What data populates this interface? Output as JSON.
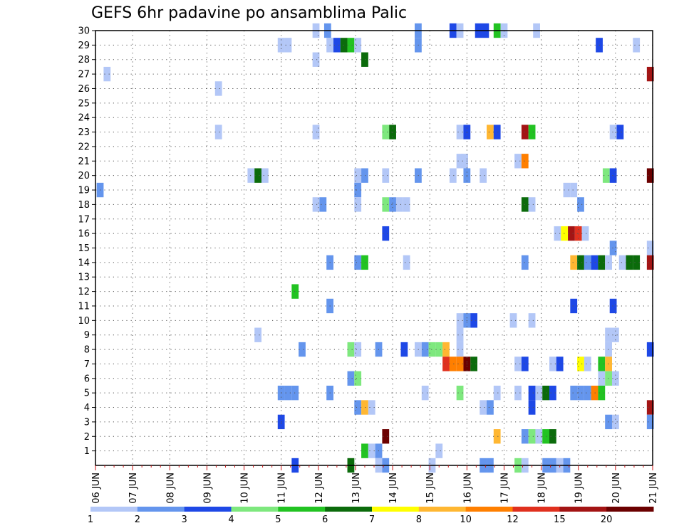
{
  "chart_data": {
    "type": "heatmap",
    "title": "GEFS 6hr padavine po ansamblima Palic",
    "xlabel": "",
    "ylabel": "",
    "x_tick_labels": [
      "06 JUN",
      "07 JUN",
      "08 JUN",
      "09 JUN",
      "10 JUN",
      "11 JUN",
      "12 JUN",
      "13 JUN",
      "14 JUN",
      "15 JUN",
      "16 JUN",
      "17 JUN",
      "18 JUN",
      "19 JUN",
      "20 JUN",
      "21 JUN"
    ],
    "y_tick_labels": [
      "1",
      "2",
      "3",
      "4",
      "5",
      "6",
      "7",
      "8",
      "9",
      "10",
      "11",
      "12",
      "13",
      "14",
      "15",
      "16",
      "17",
      "18",
      "19",
      "20",
      "21",
      "22",
      "23",
      "24",
      "25",
      "26",
      "27",
      "28",
      "29",
      "30"
    ],
    "xlim": [
      0,
      60
    ],
    "ylim": [
      0,
      30
    ],
    "x_unit_note": "x in 6-hour steps from 06 JUN 00z",
    "grid": true,
    "colorbar": {
      "placement": "bottom",
      "labels": [
        "1",
        "2",
        "3",
        "4",
        "5",
        "6",
        "7",
        "8",
        "10",
        "12",
        "15",
        "20"
      ],
      "colors": [
        "#b3c7f7",
        "#6495ed",
        "#1e48e6",
        "#7ee87e",
        "#22c322",
        "#0b6b0b",
        "#ffff00",
        "#ffb732",
        "#ff7f00",
        "#e0301e",
        "#a31414",
        "#6b0000"
      ]
    },
    "cells": [
      [
        23.75,
        30,
        1
      ],
      [
        25,
        30,
        2
      ],
      [
        34.75,
        30,
        2
      ],
      [
        38.5,
        30,
        3
      ],
      [
        39.25,
        30,
        1
      ],
      [
        41.25,
        30,
        3
      ],
      [
        42,
        30,
        3
      ],
      [
        43.25,
        30,
        5
      ],
      [
        44,
        30,
        1
      ],
      [
        47.5,
        30,
        1
      ],
      [
        20,
        29,
        1
      ],
      [
        20.75,
        29,
        1
      ],
      [
        25.25,
        29,
        1
      ],
      [
        26,
        29,
        3
      ],
      [
        26.75,
        29,
        6
      ],
      [
        27.5,
        29,
        5
      ],
      [
        28.25,
        29,
        1
      ],
      [
        34.75,
        29,
        2
      ],
      [
        54.25,
        29,
        3
      ],
      [
        58.25,
        29,
        1
      ],
      [
        23.75,
        28,
        1
      ],
      [
        29,
        28,
        6
      ],
      [
        1.25,
        27,
        1
      ],
      [
        59.75,
        27,
        11
      ],
      [
        13.25,
        26,
        1
      ],
      [
        13.25,
        23,
        1
      ],
      [
        23.75,
        23,
        1
      ],
      [
        31.25,
        23,
        4
      ],
      [
        32,
        23,
        6
      ],
      [
        39.25,
        23,
        1
      ],
      [
        40,
        23,
        3
      ],
      [
        42.5,
        23,
        8
      ],
      [
        43.25,
        23,
        3
      ],
      [
        46.25,
        23,
        11
      ],
      [
        47,
        23,
        5
      ],
      [
        55.75,
        23,
        1
      ],
      [
        56.5,
        23,
        3
      ],
      [
        39.25,
        21,
        1
      ],
      [
        39.75,
        21,
        1
      ],
      [
        45.5,
        21,
        1
      ],
      [
        46.25,
        21,
        9
      ],
      [
        16.75,
        20,
        1
      ],
      [
        17.5,
        20,
        6
      ],
      [
        18.25,
        20,
        1
      ],
      [
        28.25,
        20,
        1
      ],
      [
        29,
        20,
        2
      ],
      [
        31.25,
        20,
        1
      ],
      [
        34.75,
        20,
        2
      ],
      [
        38.5,
        20,
        1
      ],
      [
        40,
        20,
        2
      ],
      [
        41.75,
        20,
        1
      ],
      [
        55,
        20,
        4
      ],
      [
        55.75,
        20,
        3
      ],
      [
        59.75,
        20,
        12
      ],
      [
        0.5,
        19,
        2
      ],
      [
        28.25,
        19,
        2
      ],
      [
        50.75,
        19,
        1
      ],
      [
        51.5,
        19,
        1
      ],
      [
        23.75,
        18,
        1
      ],
      [
        24.5,
        18,
        2
      ],
      [
        28.25,
        18,
        1
      ],
      [
        31.25,
        18,
        4
      ],
      [
        32,
        18,
        2
      ],
      [
        32.75,
        18,
        1
      ],
      [
        33.5,
        18,
        1
      ],
      [
        46.25,
        18,
        6
      ],
      [
        47,
        18,
        1
      ],
      [
        52.25,
        18,
        2
      ],
      [
        31.25,
        16,
        3
      ],
      [
        49.75,
        16,
        1
      ],
      [
        50.5,
        16,
        7
      ],
      [
        51.25,
        16,
        11
      ],
      [
        52,
        16,
        10
      ],
      [
        52.75,
        16,
        1
      ],
      [
        55.75,
        15,
        2
      ],
      [
        59.75,
        15,
        1
      ],
      [
        25.25,
        14,
        2
      ],
      [
        28.25,
        14,
        2
      ],
      [
        29,
        14,
        5
      ],
      [
        33.5,
        14,
        1
      ],
      [
        46.25,
        14,
        2
      ],
      [
        51.5,
        14,
        8
      ],
      [
        52.25,
        14,
        6
      ],
      [
        53,
        14,
        2
      ],
      [
        53.75,
        14,
        3
      ],
      [
        54.5,
        14,
        6
      ],
      [
        55.25,
        14,
        1
      ],
      [
        56.75,
        14,
        1
      ],
      [
        57.5,
        14,
        6
      ],
      [
        58.25,
        14,
        6
      ],
      [
        59.75,
        14,
        11
      ],
      [
        21.5,
        12,
        5
      ],
      [
        51.5,
        11,
        3
      ],
      [
        55.75,
        11,
        3
      ],
      [
        25.25,
        11,
        2
      ],
      [
        39.25,
        10,
        1
      ],
      [
        40,
        10,
        2
      ],
      [
        40.75,
        10,
        3
      ],
      [
        45,
        10,
        1
      ],
      [
        47,
        10,
        1
      ],
      [
        17.5,
        9,
        1
      ],
      [
        39.25,
        9,
        1
      ],
      [
        55.25,
        9,
        1
      ],
      [
        56,
        9,
        1
      ],
      [
        22.25,
        8,
        2
      ],
      [
        27.5,
        8,
        4
      ],
      [
        28.25,
        8,
        1
      ],
      [
        30.5,
        8,
        2
      ],
      [
        33.25,
        8,
        3
      ],
      [
        34.75,
        8,
        1
      ],
      [
        35.5,
        8,
        2
      ],
      [
        36.25,
        8,
        4
      ],
      [
        37,
        8,
        4
      ],
      [
        37.75,
        8,
        8
      ],
      [
        39.25,
        8,
        1
      ],
      [
        55.25,
        8,
        1
      ],
      [
        59.75,
        8,
        3
      ],
      [
        37.75,
        7,
        10
      ],
      [
        38.5,
        7,
        9
      ],
      [
        39.25,
        7,
        9
      ],
      [
        40,
        7,
        12
      ],
      [
        40.75,
        7,
        6
      ],
      [
        45.5,
        7,
        1
      ],
      [
        46.25,
        7,
        3
      ],
      [
        49.25,
        7,
        1
      ],
      [
        50,
        7,
        3
      ],
      [
        52.25,
        7,
        7
      ],
      [
        53,
        7,
        1
      ],
      [
        54.5,
        7,
        5
      ],
      [
        55.25,
        7,
        8
      ],
      [
        27.5,
        6,
        2
      ],
      [
        28.25,
        6,
        4
      ],
      [
        54.5,
        6,
        1
      ],
      [
        55.25,
        6,
        4
      ],
      [
        56,
        6,
        1
      ],
      [
        20,
        5,
        2
      ],
      [
        20.75,
        5,
        2
      ],
      [
        21.5,
        5,
        2
      ],
      [
        25.25,
        5,
        2
      ],
      [
        35.5,
        5,
        1
      ],
      [
        39.25,
        5,
        4
      ],
      [
        43.25,
        5,
        1
      ],
      [
        45.5,
        5,
        1
      ],
      [
        47,
        5,
        3
      ],
      [
        47.75,
        5,
        1
      ],
      [
        48.5,
        5,
        6
      ],
      [
        49.25,
        5,
        3
      ],
      [
        51.5,
        5,
        2
      ],
      [
        52.25,
        5,
        2
      ],
      [
        53,
        5,
        2
      ],
      [
        53.75,
        5,
        9
      ],
      [
        54.5,
        5,
        5
      ],
      [
        28.25,
        4,
        2
      ],
      [
        29,
        4,
        8
      ],
      [
        29.75,
        4,
        1
      ],
      [
        41.75,
        4,
        1
      ],
      [
        42.5,
        4,
        2
      ],
      [
        47,
        4,
        3
      ],
      [
        59.75,
        4,
        11
      ],
      [
        20,
        3,
        3
      ],
      [
        55.25,
        3,
        2
      ],
      [
        56,
        3,
        1
      ],
      [
        59.75,
        3,
        2
      ],
      [
        31.25,
        2,
        12
      ],
      [
        43.25,
        2,
        8
      ],
      [
        46.25,
        2,
        2
      ],
      [
        47,
        2,
        4
      ],
      [
        47.75,
        2,
        1
      ],
      [
        48.5,
        2,
        5
      ],
      [
        49.25,
        2,
        6
      ],
      [
        29,
        1,
        5
      ],
      [
        29.75,
        1,
        1
      ],
      [
        30.5,
        1,
        2
      ],
      [
        37,
        1,
        1
      ],
      [
        21.5,
        0,
        3
      ],
      [
        27.5,
        0,
        6
      ],
      [
        30.5,
        0,
        1
      ],
      [
        31.25,
        0,
        2
      ],
      [
        36.25,
        0,
        1
      ],
      [
        41.75,
        0,
        2
      ],
      [
        42.5,
        0,
        2
      ],
      [
        45.5,
        0,
        4
      ],
      [
        46.25,
        0,
        1
      ],
      [
        48.5,
        0,
        2
      ],
      [
        49.25,
        0,
        2
      ],
      [
        50,
        0,
        1
      ],
      [
        50.75,
        0,
        2
      ]
    ]
  }
}
